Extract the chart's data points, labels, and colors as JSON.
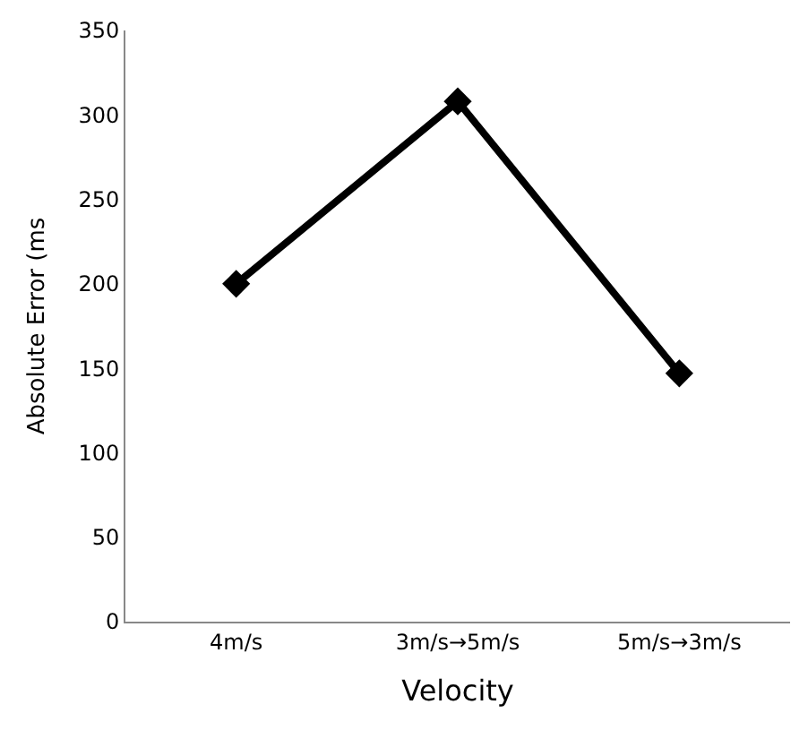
{
  "chart_data": {
    "type": "line",
    "xlabel": "Velocity",
    "ylabel": "Absolute Error (ms",
    "categories": [
      "4m/s",
      "3m/s→5m/s",
      "5m/s→3m/s"
    ],
    "series": [
      {
        "color": "#000000",
        "values": [
          200,
          308,
          147
        ]
      }
    ],
    "ylim": [
      0,
      350
    ],
    "yticks": [
      0,
      50,
      100,
      150,
      200,
      250,
      300,
      350
    ],
    "marker": "diamond",
    "line_style": "solid"
  }
}
